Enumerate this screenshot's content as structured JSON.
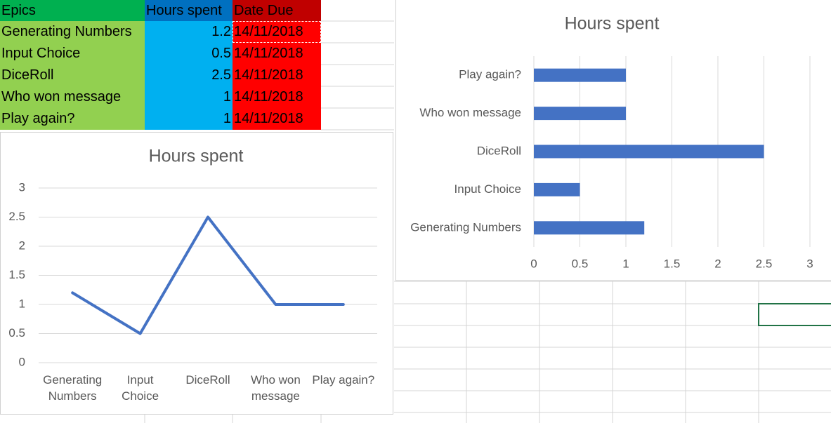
{
  "table": {
    "header": [
      "Epics",
      "Hours spent",
      "Date Due"
    ],
    "rows": [
      [
        "Generating Numbers",
        1.2,
        "14/11/2018"
      ],
      [
        "Input Choice",
        0.5,
        "14/11/2018"
      ],
      [
        "DiceRoll",
        2.5,
        "14/11/2018"
      ],
      [
        "Who won message",
        1,
        "14/11/2018"
      ],
      [
        "Play again?",
        1,
        "14/11/2018"
      ]
    ]
  },
  "chart_data": [
    {
      "type": "line",
      "title": "Hours spent",
      "categories": [
        "Generating Numbers",
        "Input Choice",
        "DiceRoll",
        "Who won message",
        "Play again?"
      ],
      "values": [
        1.2,
        0.5,
        2.5,
        1,
        1
      ],
      "color": "#4472c4",
      "ylim": [
        0,
        3
      ],
      "yticks": [
        0,
        0.5,
        1,
        1.5,
        2,
        2.5,
        3
      ],
      "grid": true
    },
    {
      "type": "bar",
      "orientation": "horizontal",
      "title": "Hours spent",
      "categories": [
        "Generating Numbers",
        "Input Choice",
        "DiceRoll",
        "Who won message",
        "Play again?"
      ],
      "values": [
        1.2,
        0.5,
        2.5,
        1,
        1
      ],
      "color": "#4472c4",
      "xlim": [
        0,
        3
      ],
      "xticks": [
        0,
        0.5,
        1,
        1.5,
        2,
        2.5,
        3
      ],
      "grid": true
    }
  ]
}
